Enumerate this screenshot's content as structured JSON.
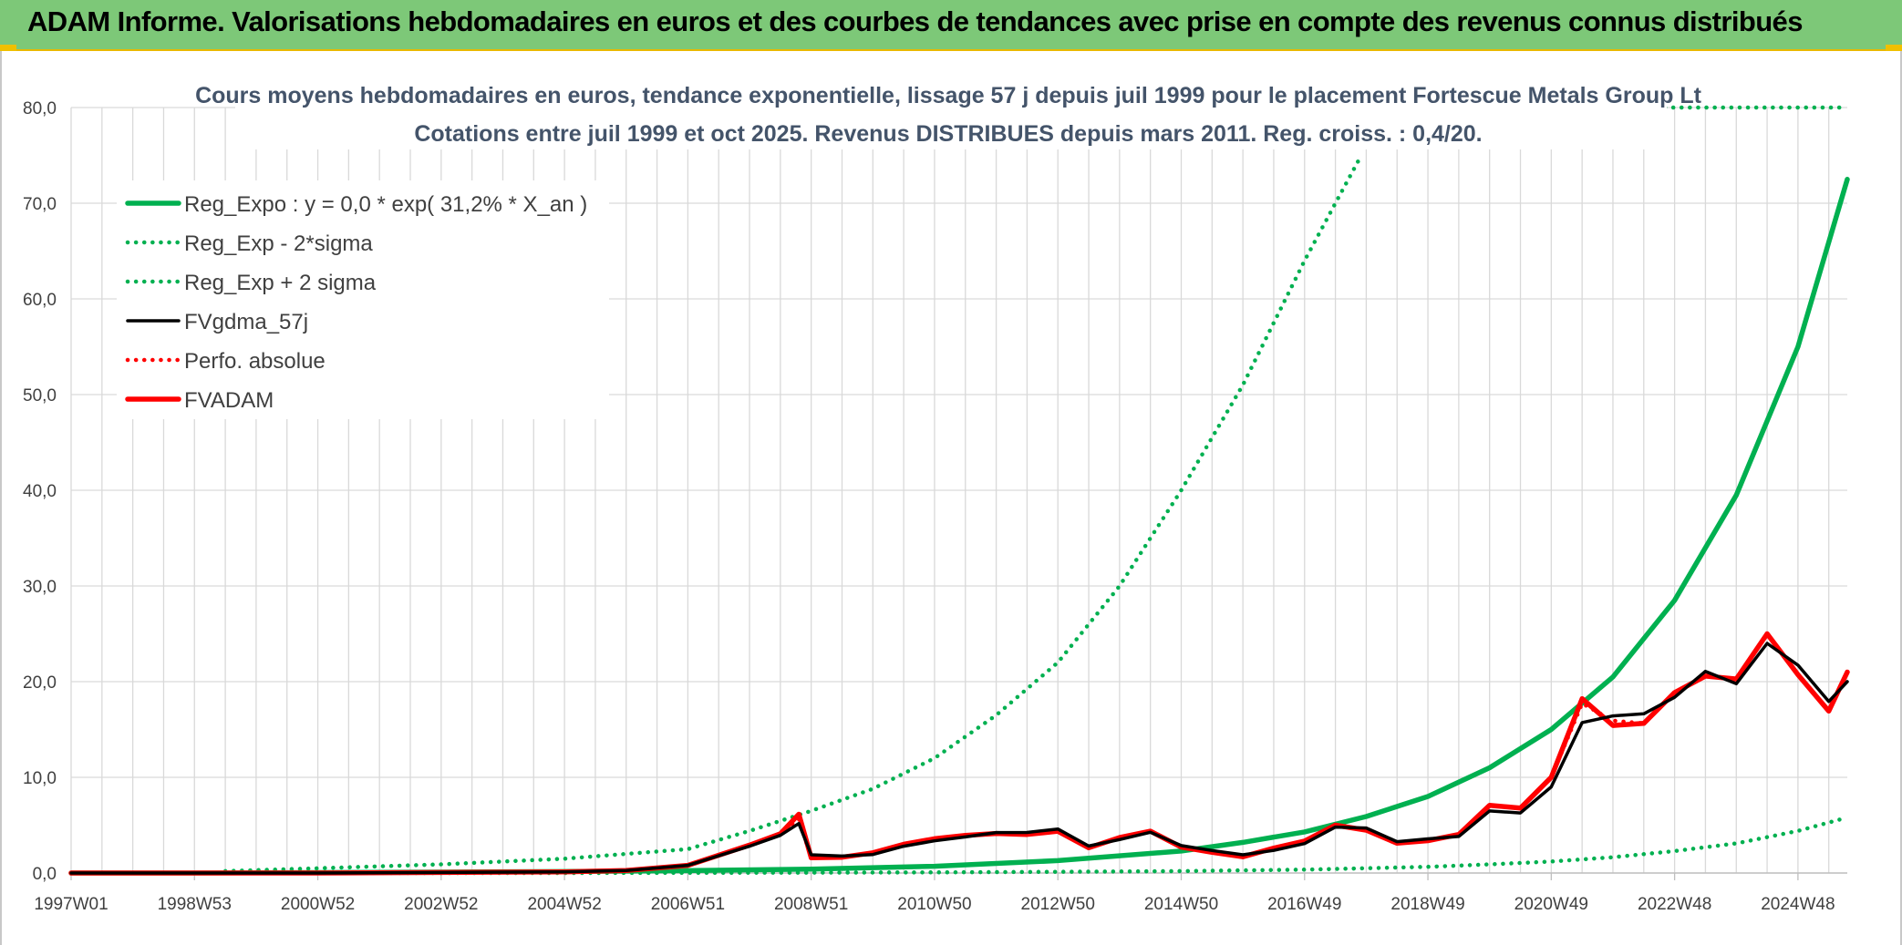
{
  "banner": {
    "title": "ADAM Informe. Valorisations hebdomadaires en euros et des courbes de tendances avec prise en compte des revenus connus distribués"
  },
  "colors": {
    "banner_bg": "#7dc878",
    "green": "#00b050",
    "black": "#000000",
    "red": "#ff0000",
    "title": "#44546a",
    "axis_text": "#404040",
    "grid": "#d9d9d9"
  },
  "chart_data": {
    "type": "line",
    "title": "Cours moyens hebdomadaires en euros, tendance exponentielle, lissage 57 j depuis juil 1999 pour le placement Fortescue Metals Group Lt",
    "subtitle": "Cotations entre juil 1999 et oct 2025. Revenus DISTRIBUES depuis mars 2011. Reg. croiss. : 0,4/20.",
    "xlabel": "",
    "ylabel": "",
    "ylim": [
      0,
      80
    ],
    "yticks": [
      "0,0",
      "10,0",
      "20,0",
      "30,0",
      "40,0",
      "50,0",
      "60,0",
      "70,0",
      "80,0"
    ],
    "xlim": [
      1997.0,
      2025.8
    ],
    "xticks": [
      {
        "label": "1997W01",
        "x": 1997.0
      },
      {
        "label": "1998W53",
        "x": 1999.0
      },
      {
        "label": "2000W52",
        "x": 2001.0
      },
      {
        "label": "2002W52",
        "x": 2003.0
      },
      {
        "label": "2004W52",
        "x": 2005.0
      },
      {
        "label": "2006W51",
        "x": 2007.0
      },
      {
        "label": "2008W51",
        "x": 2009.0
      },
      {
        "label": "2010W50",
        "x": 2011.0
      },
      {
        "label": "2012W50",
        "x": 2013.0
      },
      {
        "label": "2014W50",
        "x": 2015.0
      },
      {
        "label": "2016W49",
        "x": 2017.0
      },
      {
        "label": "2018W49",
        "x": 2019.0
      },
      {
        "label": "2020W49",
        "x": 2021.0
      },
      {
        "label": "2022W48",
        "x": 2023.0
      },
      {
        "label": "2024W48",
        "x": 2025.0
      }
    ],
    "legend_position": "top-left",
    "series": [
      {
        "name": "Reg_Expo : y = 0,0 * exp( 31,2% *  X_an )",
        "style": "solid-thick",
        "color": "#00b050",
        "x": [
          1997.0,
          1999.0,
          2001.0,
          2003.0,
          2005.0,
          2007.0,
          2009.0,
          2011.0,
          2013.0,
          2015.0,
          2016.0,
          2017.0,
          2018.0,
          2019.0,
          2020.0,
          2021.0,
          2022.0,
          2023.0,
          2024.0,
          2025.0,
          2025.8
        ],
        "y": [
          0.0,
          0.0,
          0.05,
          0.1,
          0.15,
          0.25,
          0.4,
          0.7,
          1.3,
          2.3,
          3.2,
          4.3,
          5.9,
          8.0,
          11.0,
          15.0,
          20.5,
          28.5,
          39.5,
          55.0,
          72.5
        ]
      },
      {
        "name": "Reg_Exp - 2*sigma",
        "style": "dotted",
        "color": "#00b050",
        "x": [
          1999.5,
          2001.0,
          2003.0,
          2005.0,
          2007.0,
          2009.0,
          2011.0,
          2013.0,
          2015.0,
          2017.0,
          2019.0,
          2020.0,
          2021.0,
          2022.0,
          2023.0,
          2024.0,
          2025.0,
          2025.8
        ],
        "y": [
          0.0,
          0.0,
          0.0,
          0.0,
          0.02,
          0.04,
          0.07,
          0.12,
          0.2,
          0.35,
          0.65,
          0.9,
          1.2,
          1.65,
          2.3,
          3.1,
          4.4,
          5.8
        ]
      },
      {
        "name": "Reg_Exp + 2 sigma",
        "style": "dotted",
        "color": "#00b050",
        "x": [
          1999.5,
          2001.0,
          2003.0,
          2005.0,
          2007.0,
          2008.0,
          2009.0,
          2010.0,
          2011.0,
          2012.0,
          2013.0,
          2014.0,
          2015.0,
          2016.0,
          2017.0,
          2017.5,
          2017.92
        ],
        "y": [
          0.2,
          0.5,
          0.9,
          1.5,
          2.5,
          4.4,
          6.5,
          8.8,
          12.0,
          16.5,
          22.0,
          30.0,
          40.0,
          51.0,
          64.0,
          70.0,
          75.0
        ]
      },
      {
        "name": "FVgdma_57j",
        "style": "solid",
        "color": "#000000",
        "x": [
          1997.0,
          2001.0,
          2003.0,
          2005.0,
          2006.0,
          2007.0,
          2008.0,
          2008.5,
          2008.8,
          2009.0,
          2009.5,
          2010.0,
          2010.5,
          2011.0,
          2011.5,
          2012.0,
          2012.5,
          2013.0,
          2013.5,
          2014.0,
          2014.5,
          2015.0,
          2015.5,
          2016.0,
          2016.5,
          2017.0,
          2017.5,
          2018.0,
          2018.5,
          2019.0,
          2019.5,
          2020.0,
          2020.5,
          2021.0,
          2021.5,
          2022.0,
          2022.5,
          2023.0,
          2023.5,
          2024.0,
          2024.5,
          2025.0,
          2025.5,
          2025.8
        ],
        "y": [
          0.0,
          0.0,
          0.05,
          0.1,
          0.3,
          0.8,
          2.5,
          4.8,
          5.5,
          1.8,
          1.5,
          2.2,
          2.8,
          3.0,
          4.6,
          4.5,
          4.0,
          3.9,
          3.2,
          3.5,
          3.8,
          3.5,
          2.5,
          1.8,
          2.0,
          3.5,
          4.8,
          4.2,
          4.0,
          3.8,
          3.6,
          5.5,
          7.0,
          9.0,
          15.0,
          17.5,
          17.0,
          18.0,
          20.0,
          20.5,
          24.0,
          21.0,
          19.0,
          20.0
        ]
      },
      {
        "name": "Perfo. absolue",
        "style": "dotted",
        "color": "#ff0000",
        "x": [
          1997.0,
          2001.0,
          2003.0,
          2005.0,
          2006.0,
          2007.0,
          2008.0,
          2008.5,
          2008.8,
          2009.0,
          2009.5,
          2010.0,
          2010.5,
          2011.0,
          2011.5,
          2012.0,
          2012.5,
          2013.0,
          2013.5,
          2014.0,
          2014.5,
          2015.0,
          2015.5,
          2016.0,
          2016.5,
          2017.0,
          2017.5,
          2018.0,
          2018.5,
          2019.0,
          2019.5,
          2020.0,
          2020.5,
          2021.0,
          2021.5,
          2022.0,
          2022.5,
          2023.0,
          2023.5,
          2024.0,
          2024.5,
          2025.0,
          2025.5,
          2025.8
        ],
        "y": [
          0.0,
          0.0,
          0.05,
          0.1,
          0.3,
          0.8,
          2.6,
          5.0,
          6.0,
          1.5,
          1.4,
          2.4,
          3.0,
          3.2,
          4.8,
          4.4,
          3.8,
          3.7,
          3.0,
          3.7,
          3.9,
          3.3,
          2.3,
          1.6,
          2.2,
          3.8,
          5.0,
          4.0,
          3.8,
          3.6,
          3.8,
          6.0,
          7.5,
          10.0,
          17.0,
          17.0,
          16.0,
          18.5,
          19.5,
          21.0,
          25.0,
          20.0,
          18.0,
          21.0
        ]
      },
      {
        "name": "FVADAM",
        "style": "solid-thick",
        "color": "#ff0000",
        "x": [
          1997.0,
          2001.0,
          2003.0,
          2005.0,
          2006.0,
          2007.0,
          2008.0,
          2008.5,
          2008.8,
          2009.0,
          2009.5,
          2010.0,
          2010.5,
          2011.0,
          2011.5,
          2012.0,
          2012.5,
          2013.0,
          2013.5,
          2014.0,
          2014.5,
          2015.0,
          2015.5,
          2016.0,
          2016.5,
          2017.0,
          2017.5,
          2018.0,
          2018.5,
          2019.0,
          2019.5,
          2020.0,
          2020.5,
          2021.0,
          2021.5,
          2022.0,
          2022.5,
          2023.0,
          2023.5,
          2024.0,
          2024.5,
          2025.0,
          2025.5,
          2025.8
        ],
        "y": [
          0.0,
          0.0,
          0.05,
          0.1,
          0.3,
          0.8,
          2.6,
          5.0,
          6.5,
          1.5,
          1.4,
          2.4,
          3.0,
          3.2,
          4.8,
          4.4,
          3.8,
          3.7,
          3.0,
          3.7,
          3.9,
          3.3,
          2.3,
          1.6,
          2.2,
          3.8,
          5.0,
          4.0,
          3.8,
          3.6,
          3.8,
          6.0,
          7.5,
          10.0,
          17.5,
          16.5,
          16.0,
          18.5,
          19.5,
          21.0,
          25.0,
          20.0,
          18.0,
          21.0
        ]
      }
    ]
  }
}
